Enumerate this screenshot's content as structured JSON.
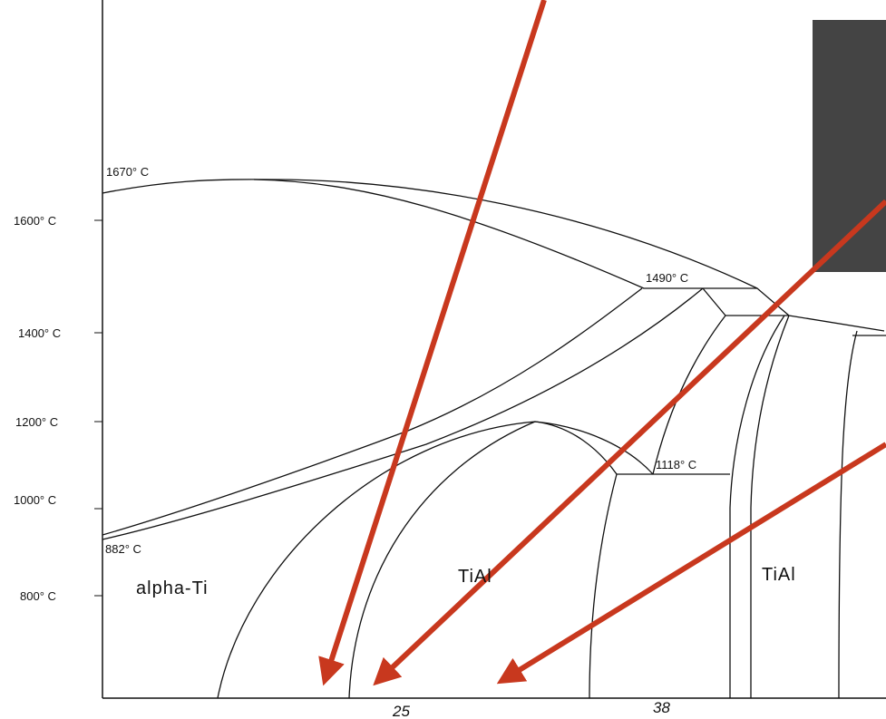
{
  "y_axis_labels": [
    "1600° C",
    "1400° C",
    "1200° C",
    "1000° C",
    "800° C"
  ],
  "temperature_labels": [
    "1670° C",
    "1490° C",
    "1118° C",
    "882° C"
  ],
  "phase_labels": [
    "alpha-Ti",
    "TiAl",
    "TiAl"
  ],
  "x_axis_labels": [
    "25",
    "38"
  ]
}
